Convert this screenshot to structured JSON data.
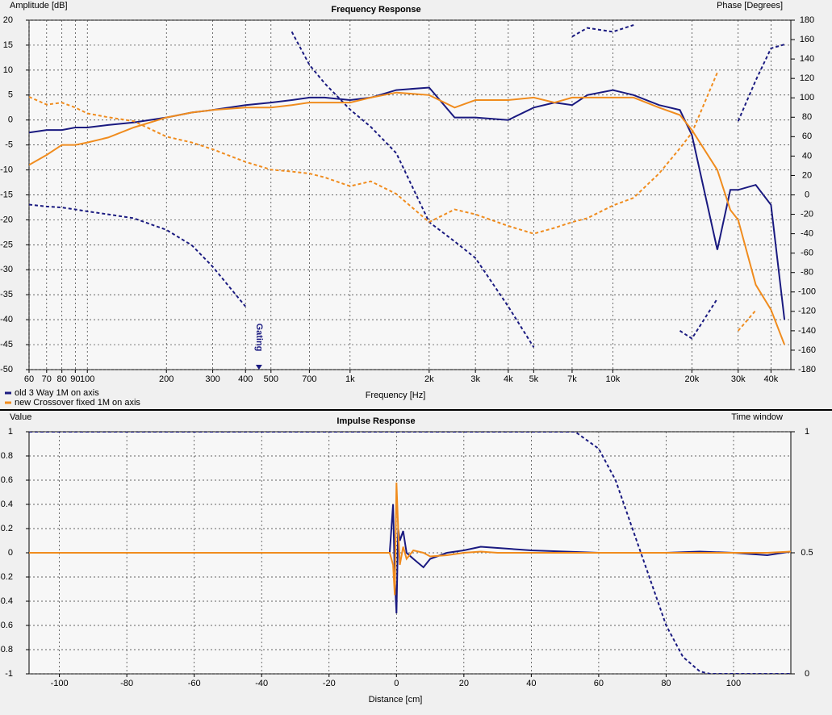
{
  "chart_data": [
    {
      "type": "line",
      "title": "Frequency Response",
      "ylabel": "Amplitude [dB]",
      "y2label": "Phase [Degrees]",
      "xlabel": "Frequency [Hz]",
      "xscale": "log",
      "x": [
        60,
        70,
        80,
        90,
        100,
        120,
        150,
        200,
        250,
        300,
        400,
        500,
        600,
        700,
        800,
        1000,
        1200,
        1500,
        2000,
        2500,
        3000,
        4000,
        5000,
        6000,
        7000,
        8000,
        10000,
        12000,
        15000,
        18000,
        20000,
        25000,
        28000,
        30000,
        35000,
        40000,
        45000
      ],
      "xlim": [
        60,
        47600
      ],
      "xticks": [
        60,
        70,
        80,
        90,
        100,
        200,
        300,
        400,
        500,
        700,
        {
          "value": 1000,
          "label": "1k"
        },
        {
          "value": 2000,
          "label": "2k"
        },
        {
          "value": 3000,
          "label": "3k"
        },
        {
          "value": 4000,
          "label": "4k"
        },
        {
          "value": 5000,
          "label": "5k"
        },
        {
          "value": 7000,
          "label": "7k"
        },
        {
          "value": 10000,
          "label": "10k"
        },
        {
          "value": 20000,
          "label": "20k"
        },
        {
          "value": 30000,
          "label": "30k"
        },
        {
          "value": 40000,
          "label": "40k"
        }
      ],
      "ylim": [
        -50,
        20
      ],
      "yticks": [
        -50,
        -45,
        -40,
        -35,
        -30,
        -25,
        -20,
        -15,
        -10,
        -5,
        0,
        5,
        10,
        15,
        20
      ],
      "y2lim": [
        -180,
        180
      ],
      "y2ticks": [
        -180,
        -160,
        -140,
        -120,
        -100,
        -80,
        -60,
        -40,
        -20,
        0,
        20,
        40,
        60,
        80,
        100,
        120,
        140,
        160,
        180
      ],
      "grid": true,
      "legend": "bottom-left",
      "annotation": {
        "text": "Gating",
        "x": 450
      },
      "series": [
        {
          "name": "old 3 Way 1M on axis",
          "color": "#1a1a80",
          "values": [
            -2.5,
            -2,
            -2,
            -1.5,
            -1.5,
            -1,
            -0.5,
            0.5,
            1.5,
            2,
            3,
            3.5,
            4,
            4.5,
            4.5,
            4,
            4.5,
            6,
            6.5,
            0.5,
            0.5,
            0,
            2.5,
            3.5,
            3,
            5,
            6,
            5,
            3,
            2,
            -3,
            -26,
            -14,
            -14,
            -13,
            -17,
            -40
          ],
          "phase": [
            -10,
            -12,
            -13,
            -15,
            -17,
            -20,
            -24,
            -36,
            -52,
            -74,
            -115,
            null,
            168,
            134,
            115,
            88,
            70,
            43,
            -28,
            -48,
            -65,
            -115,
            -157,
            null,
            163,
            172,
            168,
            175,
            null,
            -140,
            -148,
            -107,
            null,
            76,
            118,
            151,
            155
          ]
        },
        {
          "name": "new Crossover fixed 1M on axis",
          "color": "#f08c1e",
          "values": [
            -9,
            -7,
            -5,
            -5,
            -4.5,
            -3.5,
            -1.5,
            0.5,
            1.5,
            2,
            2.5,
            2.5,
            3,
            3.5,
            3.5,
            3.5,
            4.5,
            5.5,
            5,
            2.5,
            4,
            4,
            4.5,
            3.5,
            4.5,
            4.5,
            4.5,
            4.5,
            2.5,
            1,
            -2,
            -10,
            -18,
            -20,
            -33,
            -38,
            -45
          ],
          "phase": [
            101,
            93,
            95,
            90,
            84,
            80,
            76,
            60,
            54,
            47,
            34,
            26,
            24,
            22,
            18,
            9,
            14,
            1,
            -28,
            -15,
            -20,
            -32,
            -40,
            -34,
            -28,
            -24,
            -11,
            -3,
            22,
            48,
            64,
            126,
            null,
            -140,
            -119,
            null,
            null
          ]
        }
      ]
    },
    {
      "type": "line",
      "title": "Impulse Response",
      "ylabel": "Value",
      "y2label": "Time window",
      "xlabel": "Distance [cm]",
      "x": [
        -109,
        -5,
        -2,
        -1,
        -0.5,
        0,
        0.5,
        1,
        2,
        3,
        5,
        8,
        10,
        15,
        20,
        25,
        30,
        40,
        50,
        60,
        70,
        80,
        90,
        100,
        110,
        117
      ],
      "xlim": [
        -109,
        117
      ],
      "xticks": [
        -100,
        -80,
        -60,
        -40,
        -20,
        0,
        20,
        40,
        60,
        80,
        100
      ],
      "ylim": [
        -1,
        1
      ],
      "yticks": [
        -1,
        -0.8,
        -0.6,
        -0.4,
        -0.2,
        0,
        0.2,
        0.4,
        0.6,
        0.8,
        1
      ],
      "y2lim": [
        0,
        1
      ],
      "y2ticks": [
        0,
        0.5,
        1
      ],
      "grid": true,
      "series": [
        {
          "color": "#1a1a80",
          "values": [
            0,
            0,
            0,
            0.4,
            -0.2,
            -0.5,
            0.2,
            0.1,
            0.18,
            0,
            -0.05,
            -0.12,
            -0.05,
            0,
            0.02,
            0.05,
            0.04,
            0.02,
            0.01,
            0,
            0,
            0,
            0.01,
            0,
            -0.02,
            0.01
          ]
        },
        {
          "color": "#f08c1e",
          "values": [
            0,
            0,
            0,
            -0.1,
            -0.35,
            0.58,
            0.2,
            -0.1,
            0.05,
            -0.05,
            0.02,
            0,
            -0.03,
            -0.02,
            0,
            0.01,
            0,
            0,
            0,
            0,
            0,
            0,
            0,
            0,
            0,
            0.01
          ]
        }
      ],
      "window": {
        "color": "#1a1a80",
        "x": [
          -109,
          50,
          53,
          60,
          65,
          70,
          75,
          80,
          85,
          90,
          93,
          117
        ],
        "values": [
          1,
          1,
          1,
          0.93,
          0.8,
          0.6,
          0.4,
          0.2,
          0.07,
          0.01,
          0,
          0
        ]
      }
    }
  ]
}
